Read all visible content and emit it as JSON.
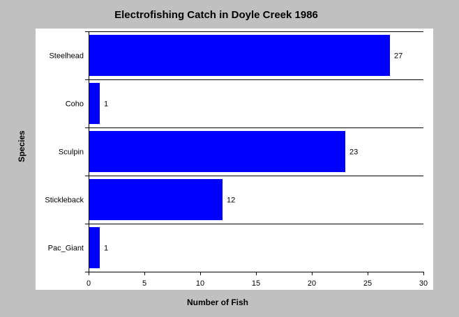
{
  "chart_data": {
    "type": "bar",
    "orientation": "horizontal",
    "title": "Electrofishing Catch in Doyle Creek 1986",
    "xlabel": "Number of Fish",
    "ylabel": "Species",
    "categories": [
      "Steelhead",
      "Coho",
      "Sculpin",
      "Stickleback",
      "Pac_Giant"
    ],
    "values": [
      27,
      1,
      23,
      12,
      1
    ],
    "data_labels": [
      "27",
      "1",
      "23",
      "12",
      "1"
    ],
    "xlim": [
      0,
      30
    ],
    "xticks": [
      0,
      5,
      10,
      15,
      20,
      25,
      30
    ],
    "bar_color": "#0000ff",
    "background": "#c0c0c0",
    "plot_background": "#ffffff",
    "grid": false,
    "legend": "none"
  }
}
